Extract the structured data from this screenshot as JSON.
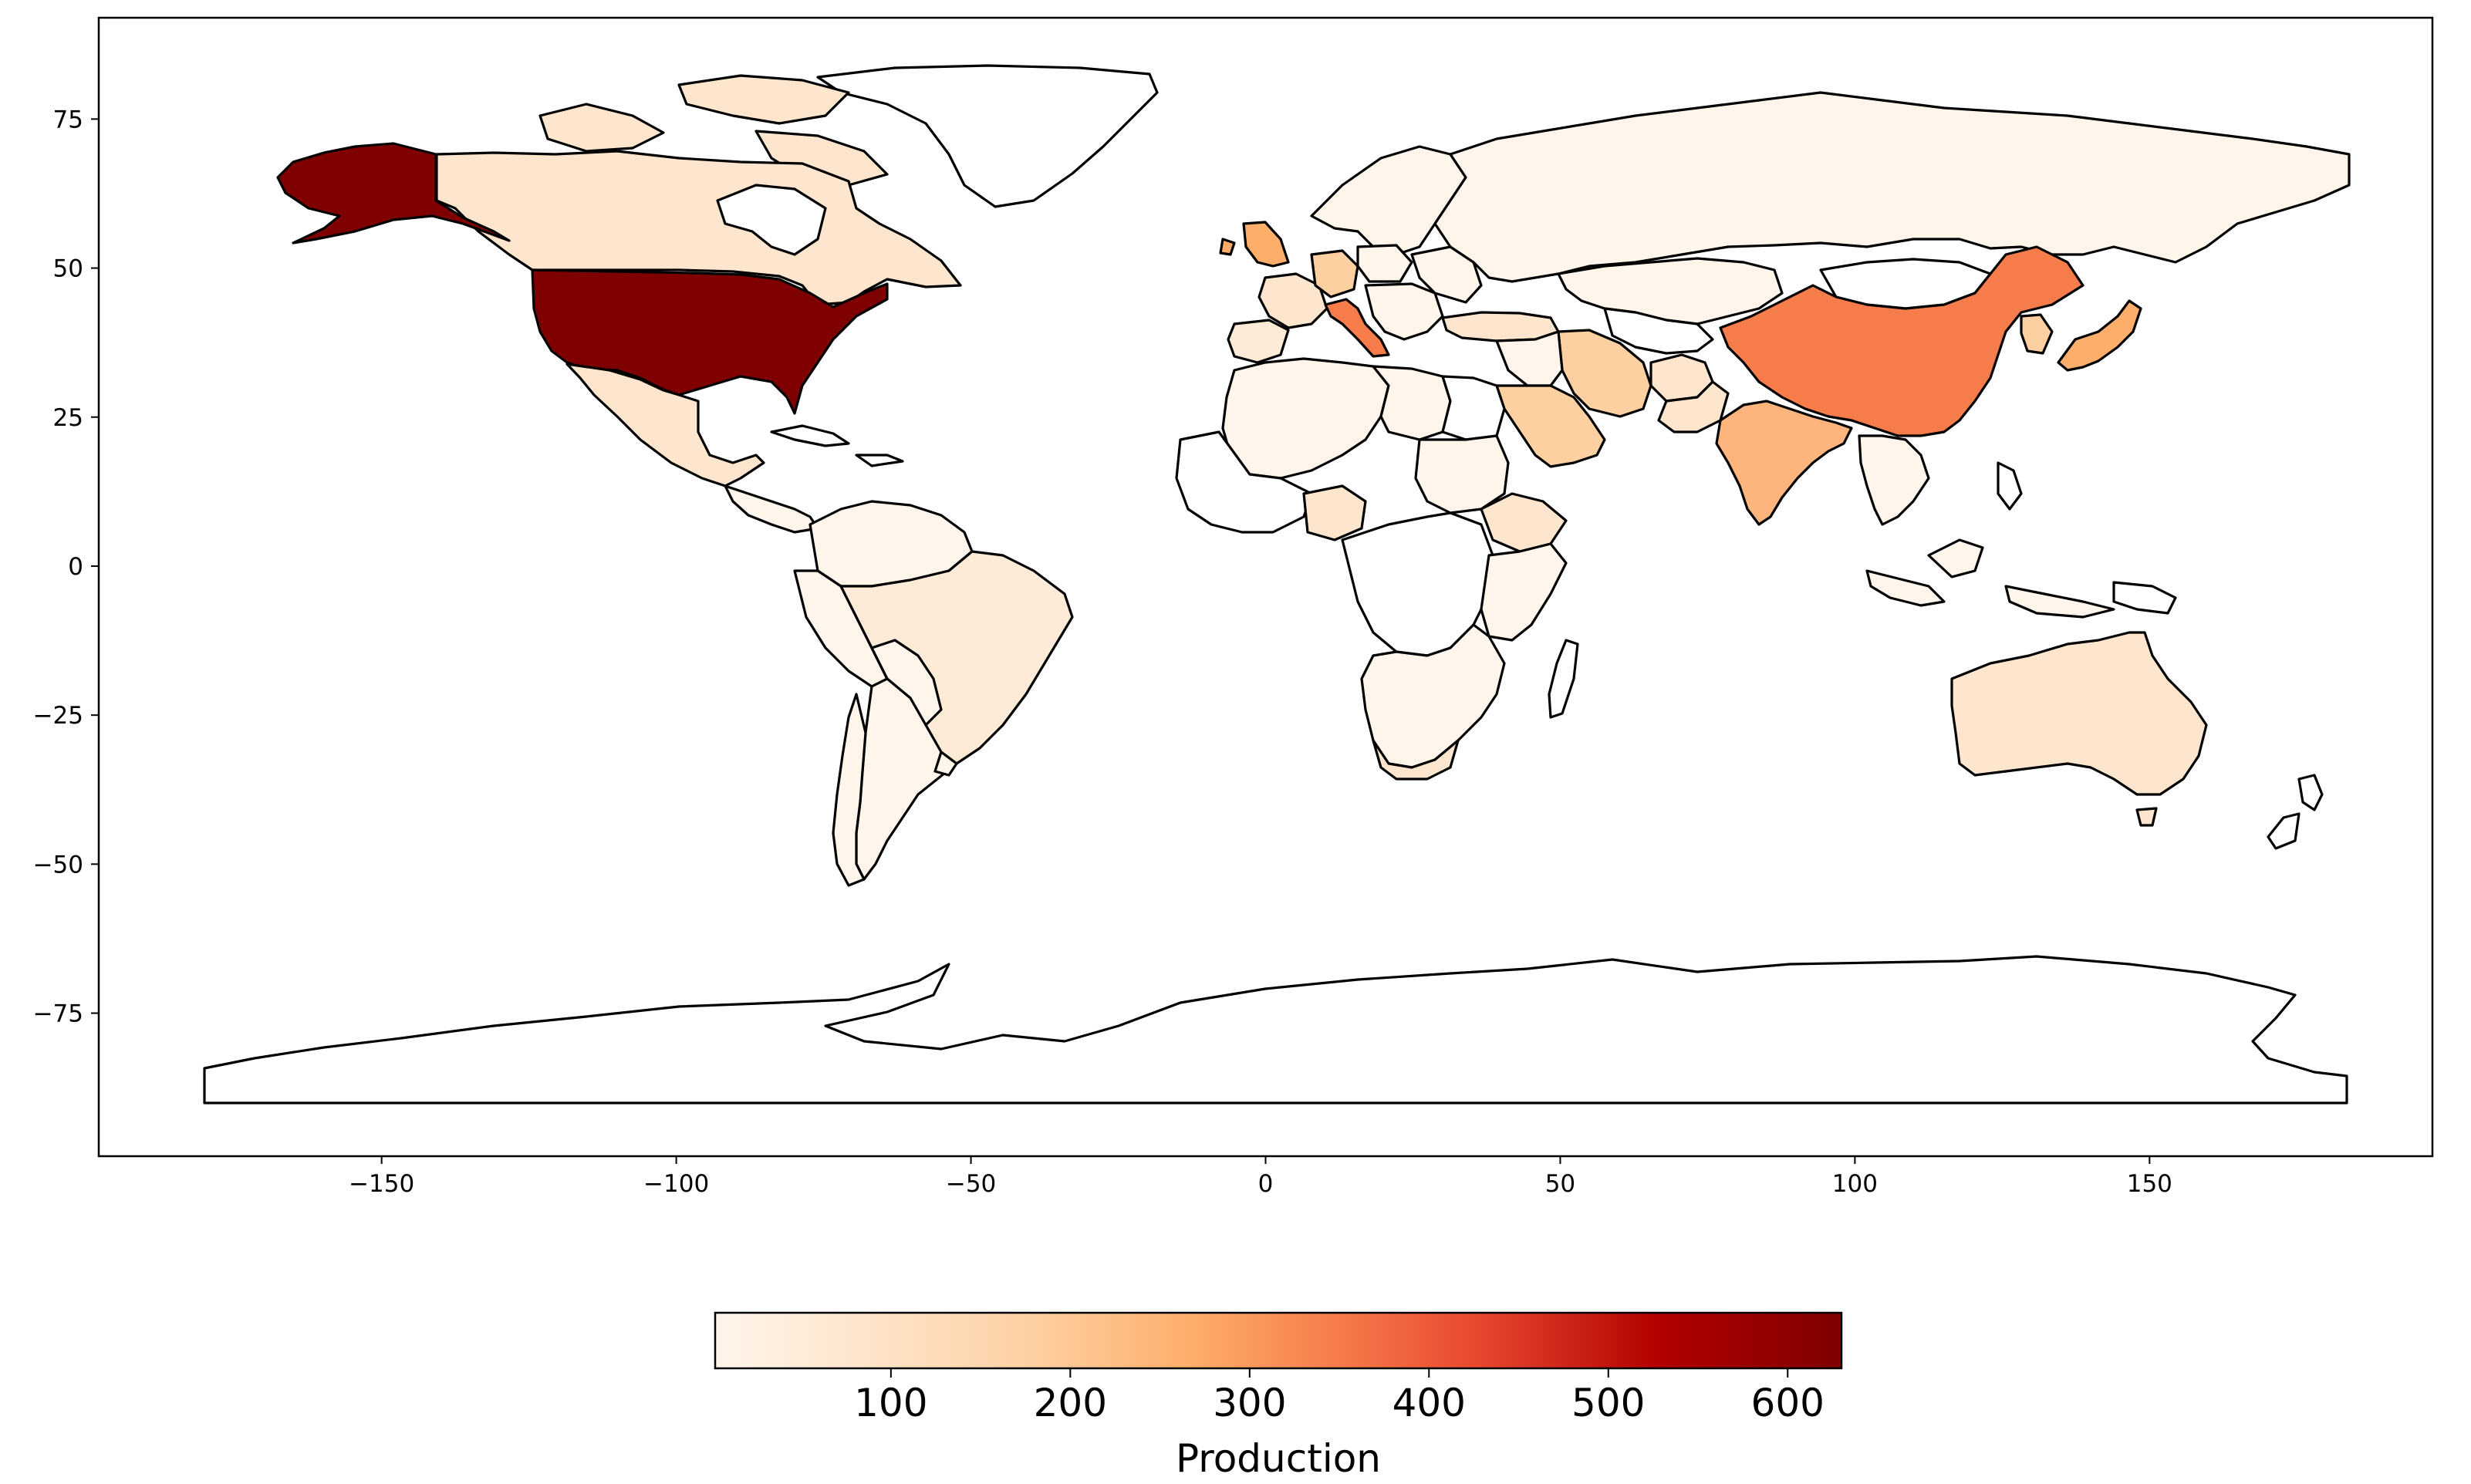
{
  "chart_data": {
    "type": "choropleth",
    "xticks": [
      -150,
      -100,
      -50,
      0,
      50,
      100,
      150
    ],
    "yticks": [
      75,
      50,
      25,
      0,
      -25,
      -50,
      -75
    ],
    "xlim": [
      -198,
      198
    ],
    "ylim": [
      -99,
      92
    ],
    "colormap": [
      "#fff5eb",
      "#fee6ce",
      "#fdd0a2",
      "#fdae6b",
      "#fd8d3c",
      "#f16913",
      "#d94801",
      "#a60000",
      "#7f0000"
    ],
    "colorbar": {
      "label": "Production",
      "range": [
        2,
        630
      ],
      "ticks": [
        100,
        200,
        300,
        400,
        500,
        600
      ]
    },
    "regions": [
      {
        "name": "United States",
        "value": 630
      },
      {
        "name": "China",
        "value": 330
      },
      {
        "name": "India",
        "value": 250
      },
      {
        "name": "Italy",
        "value": 290
      },
      {
        "name": "United Kingdom",
        "value": 240
      },
      {
        "name": "Japan",
        "value": 240
      },
      {
        "name": "Iran",
        "value": 150
      },
      {
        "name": "Saudi Arabia",
        "value": 160
      },
      {
        "name": "Canada",
        "value": 90
      },
      {
        "name": "Australia",
        "value": 90
      },
      {
        "name": "Mexico",
        "value": 70
      },
      {
        "name": "Brazil",
        "value": 40
      },
      {
        "name": "Russia",
        "value": 20
      },
      {
        "name": "France",
        "value": 70
      },
      {
        "name": "Germany",
        "value": 110
      },
      {
        "name": "Spain",
        "value": 50
      },
      {
        "name": "Turkey",
        "value": 60
      },
      {
        "name": "Nigeria",
        "value": 50
      },
      {
        "name": "Ethiopia",
        "value": 60
      },
      {
        "name": "Afghanistan",
        "value": 50
      },
      {
        "name": "Pakistan",
        "value": 90
      },
      {
        "name": "Argentina",
        "value": 20
      },
      {
        "name": "Poland",
        "value": 30
      },
      {
        "name": "Libya",
        "value": 25
      },
      {
        "name": "Sudan",
        "value": 35
      }
    ]
  }
}
